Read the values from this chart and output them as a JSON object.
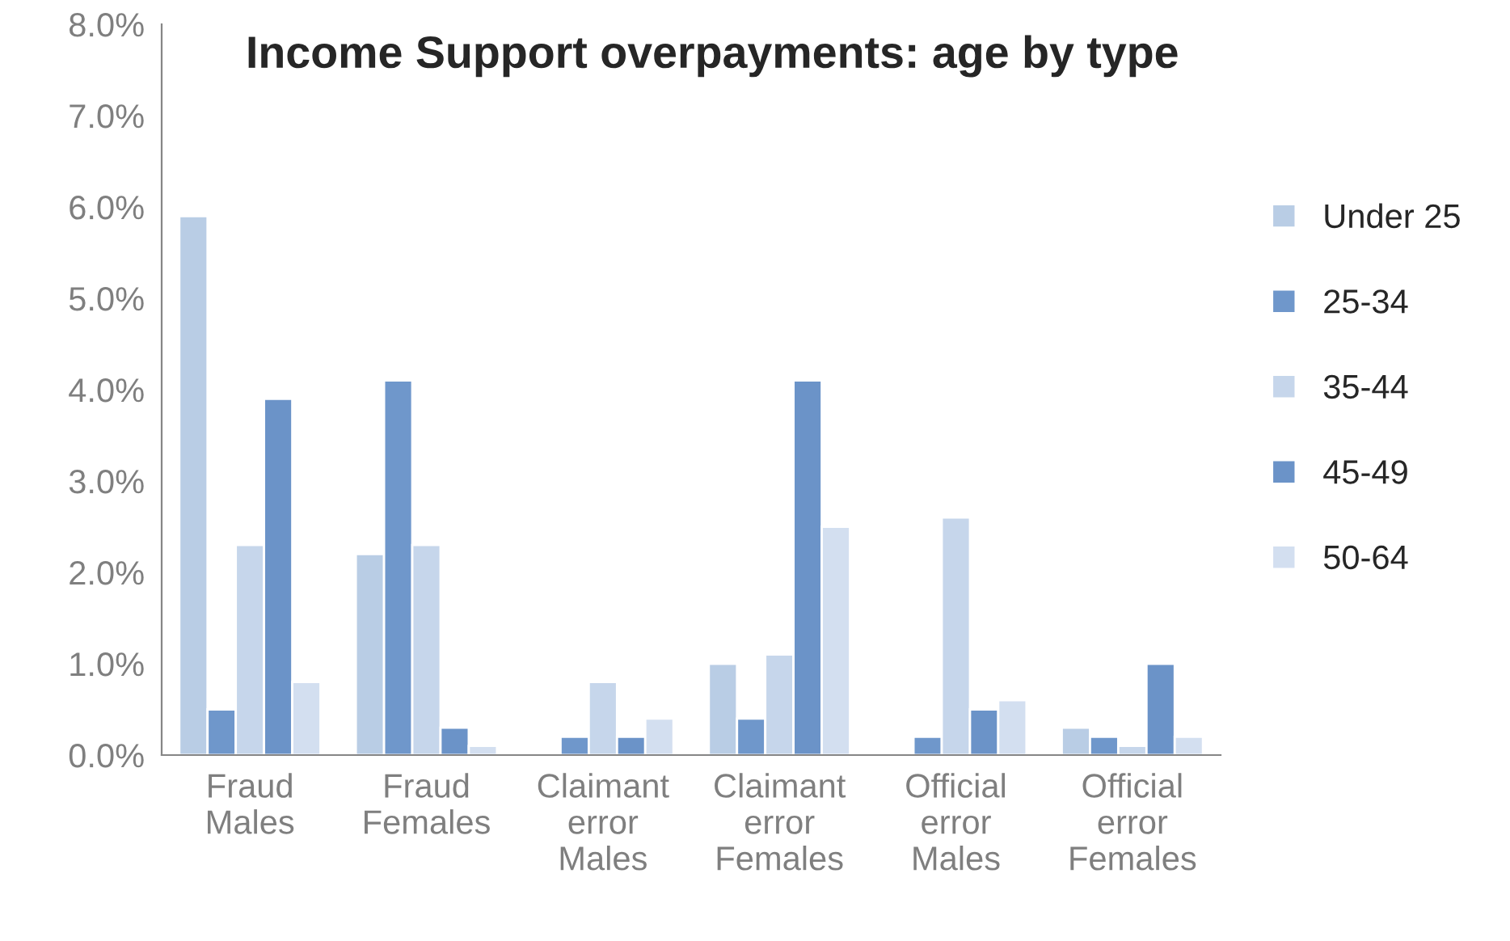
{
  "chart_data": {
    "type": "bar",
    "title": "Income Support overpayments: age by type",
    "categories": [
      "Fraud\nMales",
      "Fraud\nFemales",
      "Claimant\nerror\nMales",
      "Claimant\nerror\nFemales",
      "Official\nerror\nMales",
      "Official\nerror\nFemales"
    ],
    "series": [
      {
        "name": "Under 25",
        "color": "#b9cde5",
        "values": [
          5.9,
          2.2,
          null,
          1.0,
          null,
          0.3
        ]
      },
      {
        "name": "25-34",
        "color": "#6f97cb",
        "values": [
          0.5,
          4.1,
          0.2,
          0.4,
          0.2,
          0.2
        ]
      },
      {
        "name": "35-44",
        "color": "#c6d6eb",
        "values": [
          2.3,
          2.3,
          0.8,
          1.1,
          2.6,
          0.1
        ]
      },
      {
        "name": "45-49",
        "color": "#6b93c8",
        "values": [
          3.9,
          0.3,
          0.2,
          4.1,
          0.5,
          1.0
        ]
      },
      {
        "name": "50-64",
        "color": "#d3dff0",
        "values": [
          0.8,
          0.1,
          0.4,
          2.5,
          0.6,
          0.2
        ]
      }
    ],
    "ylim": [
      0,
      8
    ],
    "yticks": [
      {
        "value": 0,
        "label": "0.0%"
      },
      {
        "value": 1,
        "label": "1.0%"
      },
      {
        "value": 2,
        "label": "2.0%"
      },
      {
        "value": 3,
        "label": "3.0%"
      },
      {
        "value": 4,
        "label": "4.0%"
      },
      {
        "value": 5,
        "label": "5.0%"
      },
      {
        "value": 6,
        "label": "6.0%"
      },
      {
        "value": 7,
        "label": "7.0%"
      },
      {
        "value": 8,
        "label": "8.0%"
      }
    ],
    "grid": false,
    "legend": "right"
  }
}
